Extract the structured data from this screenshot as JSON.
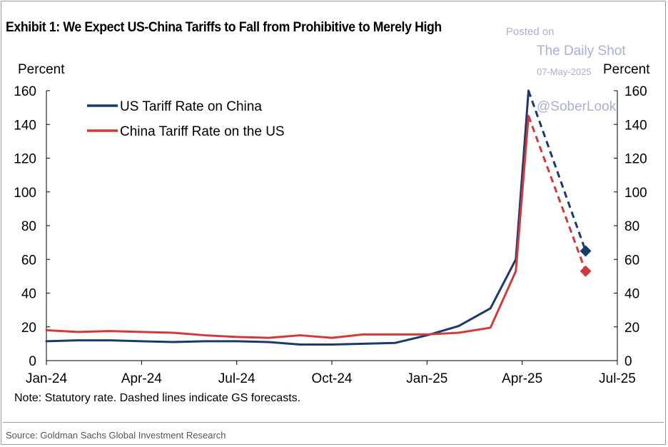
{
  "title": "Exhibit 1: We Expect US-China Tariffs to Fall from Prohibitive to Merely High",
  "watermark": {
    "posted_on": "Posted on",
    "site": "The Daily Shot",
    "date": "07-May-2025",
    "handle": "@SoberLook"
  },
  "note": "Note: Statutory rate. Dashed lines indicate GS forecasts.",
  "source": "Source: Goldman Sachs Global Investment Research",
  "chart_data": {
    "type": "line",
    "title": "Exhibit 1: We Expect US-China Tariffs to Fall from Prohibitive to Merely High",
    "ylabel_left": "Percent",
    "ylabel_right": "Percent",
    "ylim": [
      0,
      160
    ],
    "yticks": [
      0,
      20,
      40,
      60,
      80,
      100,
      120,
      140,
      160
    ],
    "x_range_months": [
      0,
      18
    ],
    "xticks": [
      {
        "label": "Jan-24",
        "t": 0
      },
      {
        "label": "Apr-24",
        "t": 3
      },
      {
        "label": "Jul-24",
        "t": 6
      },
      {
        "label": "Oct-24",
        "t": 9
      },
      {
        "label": "Jan-25",
        "t": 12
      },
      {
        "label": "Apr-25",
        "t": 15
      },
      {
        "label": "Jul-25",
        "t": 18
      }
    ],
    "legend": [
      "US Tariff Rate on China",
      "China Tariff Rate on the US"
    ],
    "legend_position": "top-left",
    "series": [
      {
        "name": "US Tariff Rate on China",
        "color": "#1b3a6b",
        "points": [
          [
            0,
            11.5
          ],
          [
            1,
            12
          ],
          [
            2,
            12
          ],
          [
            3,
            11.5
          ],
          [
            4,
            11
          ],
          [
            5,
            11.5
          ],
          [
            6,
            11.5
          ],
          [
            7,
            11
          ],
          [
            8,
            9.5
          ],
          [
            9,
            9.5
          ],
          [
            10,
            10
          ],
          [
            11,
            10.5
          ],
          [
            12,
            15
          ],
          [
            13,
            20.5
          ],
          [
            14,
            31
          ],
          [
            14.8,
            60
          ],
          [
            15.2,
            160
          ]
        ],
        "forecast": [
          [
            15.2,
            160
          ],
          [
            17.0,
            65
          ]
        ]
      },
      {
        "name": "China Tariff Rate on the US",
        "color": "#d03a3a",
        "points": [
          [
            0,
            18
          ],
          [
            1,
            17
          ],
          [
            2,
            17.5
          ],
          [
            3,
            17
          ],
          [
            4,
            16.5
          ],
          [
            5,
            15
          ],
          [
            6,
            14
          ],
          [
            7,
            13.5
          ],
          [
            8,
            15
          ],
          [
            9,
            13.5
          ],
          [
            10,
            15.5
          ],
          [
            11,
            15.5
          ],
          [
            12,
            15.5
          ],
          [
            13,
            16.5
          ],
          [
            14,
            19.5
          ],
          [
            14.8,
            53
          ],
          [
            15.2,
            145
          ]
        ],
        "forecast": [
          [
            15.2,
            145
          ],
          [
            17.0,
            53
          ]
        ]
      }
    ]
  }
}
